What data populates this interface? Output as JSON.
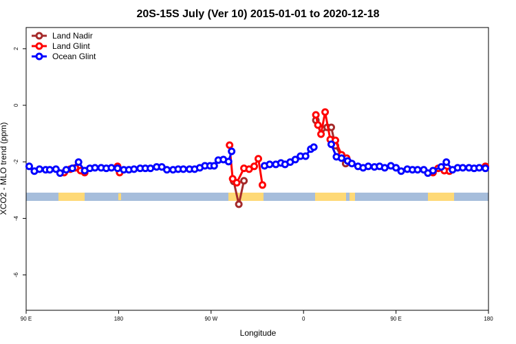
{
  "chart_data": {
    "type": "line",
    "title": "20S-15S July (Ver 10)   2015-01-01 to 2020-12-18",
    "xlabel": "Longitude",
    "ylabel": "XCO2 - MLO trend (ppm)",
    "xlim": [
      90,
      540
    ],
    "ylim": [
      -7.25,
      2.75
    ],
    "xticks": [
      {
        "value": 90,
        "label": "90 E"
      },
      180,
      {
        "value": 270,
        "label": "90 W"
      },
      {
        "value": 360,
        "label": "0"
      },
      {
        "value": 450,
        "label": "90 E"
      },
      {
        "value": 540,
        "label": "180"
      }
    ],
    "yticks": [
      -6,
      -4,
      -2,
      0,
      2
    ],
    "legend": "top-left",
    "series": [
      {
        "name": "Land Nadir",
        "color": "#a52a2a",
        "x": [
          292,
          297,
          302,
          null,
          372,
          378,
          383,
          387,
          391,
          401
        ],
        "values": [
          -2.69,
          -3.5,
          -2.67,
          null,
          -0.53,
          -0.83,
          -0.78,
          -0.78,
          -1.43,
          -2.06
        ]
      },
      {
        "name": "Land Glint",
        "color": "#ff0000",
        "x": [
          127,
          133,
          138,
          143,
          147,
          null,
          179,
          181,
          null,
          288,
          291,
          295,
          302,
          307,
          312,
          316,
          320,
          null,
          372,
          374,
          377,
          381,
          386,
          391,
          397,
          402,
          null,
          486,
          491,
          497,
          502,
          null,
          537
        ],
        "values": [
          -2.38,
          -2.26,
          -2.21,
          -2.31,
          -2.38,
          null,
          -2.16,
          -2.38,
          null,
          -1.41,
          -2.6,
          -2.74,
          -2.23,
          -2.26,
          -2.16,
          -1.89,
          -2.82,
          null,
          -0.34,
          -0.7,
          -1.02,
          -0.24,
          -1.21,
          -1.24,
          -1.75,
          -1.87,
          null,
          -2.38,
          -2.23,
          -2.31,
          -2.33,
          null,
          -2.16
        ]
      },
      {
        "name": "Ocean Glint",
        "color": "#0000ff",
        "x": [
          93,
          98,
          103,
          109,
          113,
          119,
          123,
          129,
          135,
          141,
          147,
          152,
          157,
          163,
          168,
          173,
          179,
          185,
          190,
          195,
          201,
          206,
          211,
          217,
          222,
          227,
          233,
          238,
          243,
          249,
          254,
          259,
          264,
          269,
          273,
          277,
          282,
          287,
          290,
          null,
          322,
          327,
          333,
          338,
          342,
          347,
          352,
          357,
          362,
          367,
          370,
          null,
          387,
          392,
          397,
          403,
          407,
          413,
          418,
          423,
          429,
          434,
          439,
          445,
          450,
          455,
          461,
          466,
          471,
          477,
          481,
          486,
          494,
          499,
          505,
          510,
          515,
          521,
          526,
          531,
          537
        ],
        "values": [
          -2.16,
          -2.33,
          -2.26,
          -2.28,
          -2.28,
          -2.26,
          -2.4,
          -2.28,
          -2.23,
          -2.01,
          -2.31,
          -2.23,
          -2.21,
          -2.21,
          -2.23,
          -2.21,
          -2.23,
          -2.28,
          -2.28,
          -2.26,
          -2.23,
          -2.23,
          -2.23,
          -2.18,
          -2.18,
          -2.28,
          -2.28,
          -2.26,
          -2.26,
          -2.26,
          -2.26,
          -2.21,
          -2.14,
          -2.14,
          -2.14,
          -1.94,
          -1.92,
          -1.99,
          -1.63,
          null,
          -2.14,
          -2.09,
          -2.09,
          -2.04,
          -2.09,
          -2.01,
          -1.92,
          -1.8,
          -1.8,
          -1.55,
          -1.48,
          null,
          -1.38,
          -1.82,
          -1.87,
          -1.97,
          -2.06,
          -2.16,
          -2.21,
          -2.16,
          -2.18,
          -2.16,
          -2.21,
          -2.14,
          -2.21,
          -2.33,
          -2.26,
          -2.28,
          -2.28,
          -2.28,
          -2.4,
          -2.31,
          -2.18,
          -2.01,
          -2.28,
          -2.21,
          -2.21,
          -2.21,
          -2.23,
          -2.21,
          -2.23
        ]
      }
    ]
  }
}
